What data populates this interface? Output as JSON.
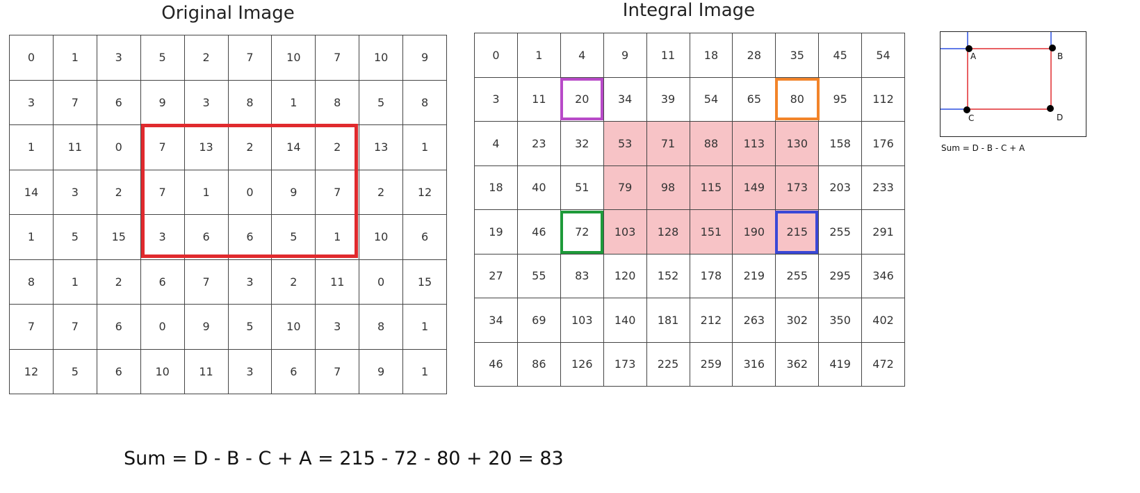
{
  "original_image": {
    "title": "Original Image",
    "rows": [
      [
        0,
        1,
        3,
        5,
        2,
        7,
        10,
        7,
        10,
        9
      ],
      [
        3,
        7,
        6,
        9,
        3,
        8,
        1,
        8,
        5,
        8
      ],
      [
        1,
        11,
        0,
        7,
        13,
        2,
        14,
        2,
        13,
        1
      ],
      [
        14,
        3,
        2,
        7,
        1,
        0,
        9,
        7,
        2,
        12
      ],
      [
        1,
        5,
        15,
        3,
        6,
        6,
        5,
        1,
        10,
        6
      ],
      [
        8,
        1,
        2,
        6,
        7,
        3,
        2,
        11,
        0,
        15
      ],
      [
        7,
        7,
        6,
        0,
        9,
        5,
        10,
        3,
        8,
        1
      ],
      [
        12,
        5,
        6,
        10,
        11,
        3,
        6,
        7,
        9,
        1
      ]
    ],
    "highlight_color": "#e02a2e"
  },
  "integral_image": {
    "title": "Integral Image",
    "rows": [
      [
        0,
        1,
        4,
        9,
        11,
        18,
        28,
        35,
        45,
        54
      ],
      [
        3,
        11,
        20,
        34,
        39,
        54,
        65,
        80,
        95,
        112
      ],
      [
        4,
        23,
        32,
        53,
        71,
        88,
        113,
        130,
        158,
        176
      ],
      [
        18,
        40,
        51,
        79,
        98,
        115,
        149,
        173,
        203,
        233
      ],
      [
        19,
        46,
        72,
        103,
        128,
        151,
        190,
        215,
        255,
        291
      ],
      [
        27,
        55,
        83,
        120,
        152,
        178,
        219,
        255,
        295,
        346
      ],
      [
        34,
        69,
        103,
        140,
        181,
        212,
        263,
        302,
        350,
        402
      ],
      [
        46,
        86,
        126,
        173,
        225,
        259,
        316,
        362,
        419,
        472
      ]
    ],
    "shade_color": "#f7c3c6",
    "corner_colors": {
      "A": "#b84ac8",
      "B": "#f2842a",
      "C": "#1e9a3a",
      "D": "#3a48d6"
    }
  },
  "legend": {
    "labels": {
      "A": "A",
      "B": "B",
      "C": "C",
      "D": "D"
    },
    "formula": "Sum = D - B - C + A",
    "rect_color": "#e02a2e",
    "axis_color": "#2b4fe0"
  },
  "sum_formula": "Sum = D - B - C + A = 215 - 72 - 80 + 20 = 83"
}
